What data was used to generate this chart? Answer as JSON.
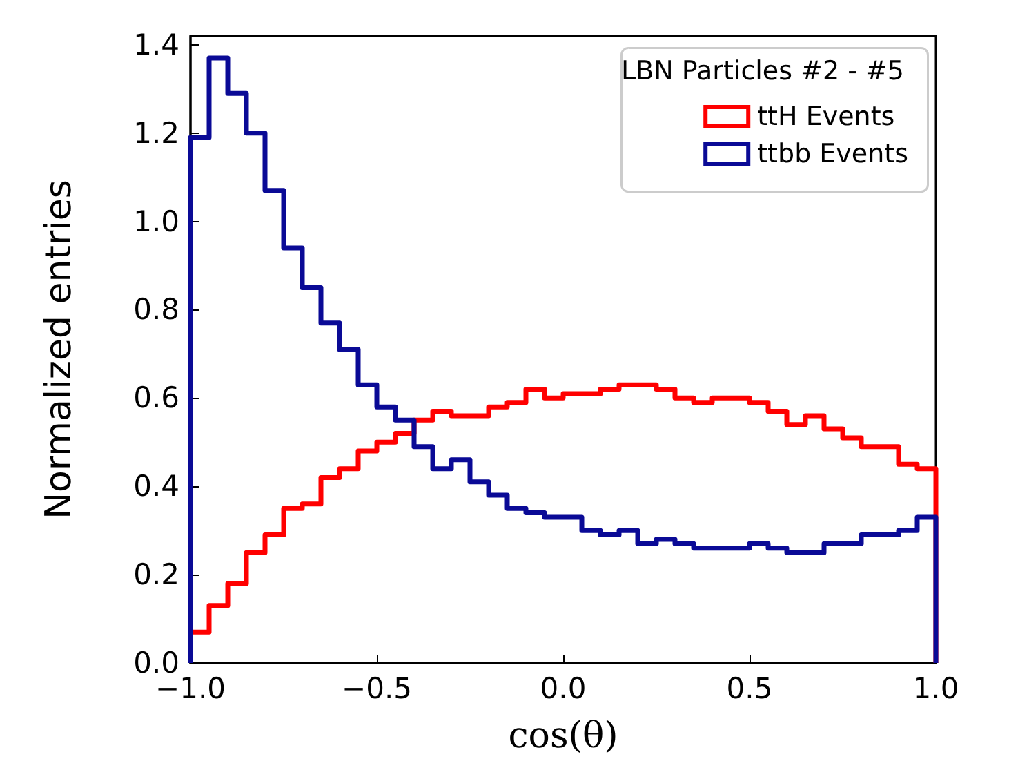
{
  "chart_data": {
    "type": "histogram",
    "xlabel": "cos(θ)",
    "ylabel": "Normalized entries",
    "legend_title": "LBN Particles #2 - #5",
    "bins": [
      -1.0,
      -0.95,
      -0.9,
      -0.85,
      -0.8,
      -0.75,
      -0.7,
      -0.65,
      -0.6,
      -0.55,
      -0.5,
      -0.45,
      -0.4,
      -0.35,
      -0.3,
      -0.25,
      -0.2,
      -0.15,
      -0.1,
      -0.05,
      0.0,
      0.05,
      0.1,
      0.15,
      0.2,
      0.25,
      0.3,
      0.35,
      0.4,
      0.45,
      0.5,
      0.55,
      0.6,
      0.65,
      0.7,
      0.75,
      0.8,
      0.85,
      0.9,
      0.95,
      1.0
    ],
    "series": [
      {
        "name": "ttH Events",
        "color": "#ff0000",
        "values": [
          0.07,
          0.13,
          0.18,
          0.25,
          0.29,
          0.35,
          0.36,
          0.42,
          0.44,
          0.48,
          0.5,
          0.52,
          0.55,
          0.57,
          0.56,
          0.56,
          0.58,
          0.59,
          0.62,
          0.6,
          0.61,
          0.61,
          0.62,
          0.63,
          0.63,
          0.62,
          0.6,
          0.59,
          0.6,
          0.6,
          0.59,
          0.57,
          0.54,
          0.56,
          0.53,
          0.51,
          0.49,
          0.49,
          0.45,
          0.44
        ]
      },
      {
        "name": "ttbb Events",
        "color": "#0a0a96",
        "values": [
          1.19,
          1.37,
          1.29,
          1.2,
          1.07,
          0.94,
          0.85,
          0.77,
          0.71,
          0.63,
          0.58,
          0.55,
          0.49,
          0.44,
          0.46,
          0.41,
          0.38,
          0.35,
          0.34,
          0.33,
          0.33,
          0.3,
          0.29,
          0.3,
          0.27,
          0.28,
          0.27,
          0.26,
          0.26,
          0.26,
          0.27,
          0.26,
          0.25,
          0.25,
          0.27,
          0.27,
          0.29,
          0.29,
          0.3,
          0.33
        ]
      }
    ],
    "xlim": [
      -1.0,
      1.0
    ],
    "xticks": [
      {
        "value": -1.0,
        "label": "−1.0"
      },
      {
        "value": -0.5,
        "label": "−0.5"
      },
      {
        "value": 0.0,
        "label": "0.0"
      },
      0.5,
      {
        "value": 1.0,
        "label": "1.0"
      }
    ],
    "ylim": [
      0,
      1.42
    ],
    "yticks": [
      {
        "value": 0,
        "label": "0.0"
      },
      0.2,
      0.4,
      0.6,
      0.8,
      {
        "value": 1.0,
        "label": "1.0"
      },
      1.2,
      1.4
    ],
    "legend": "top right",
    "grid": false
  }
}
